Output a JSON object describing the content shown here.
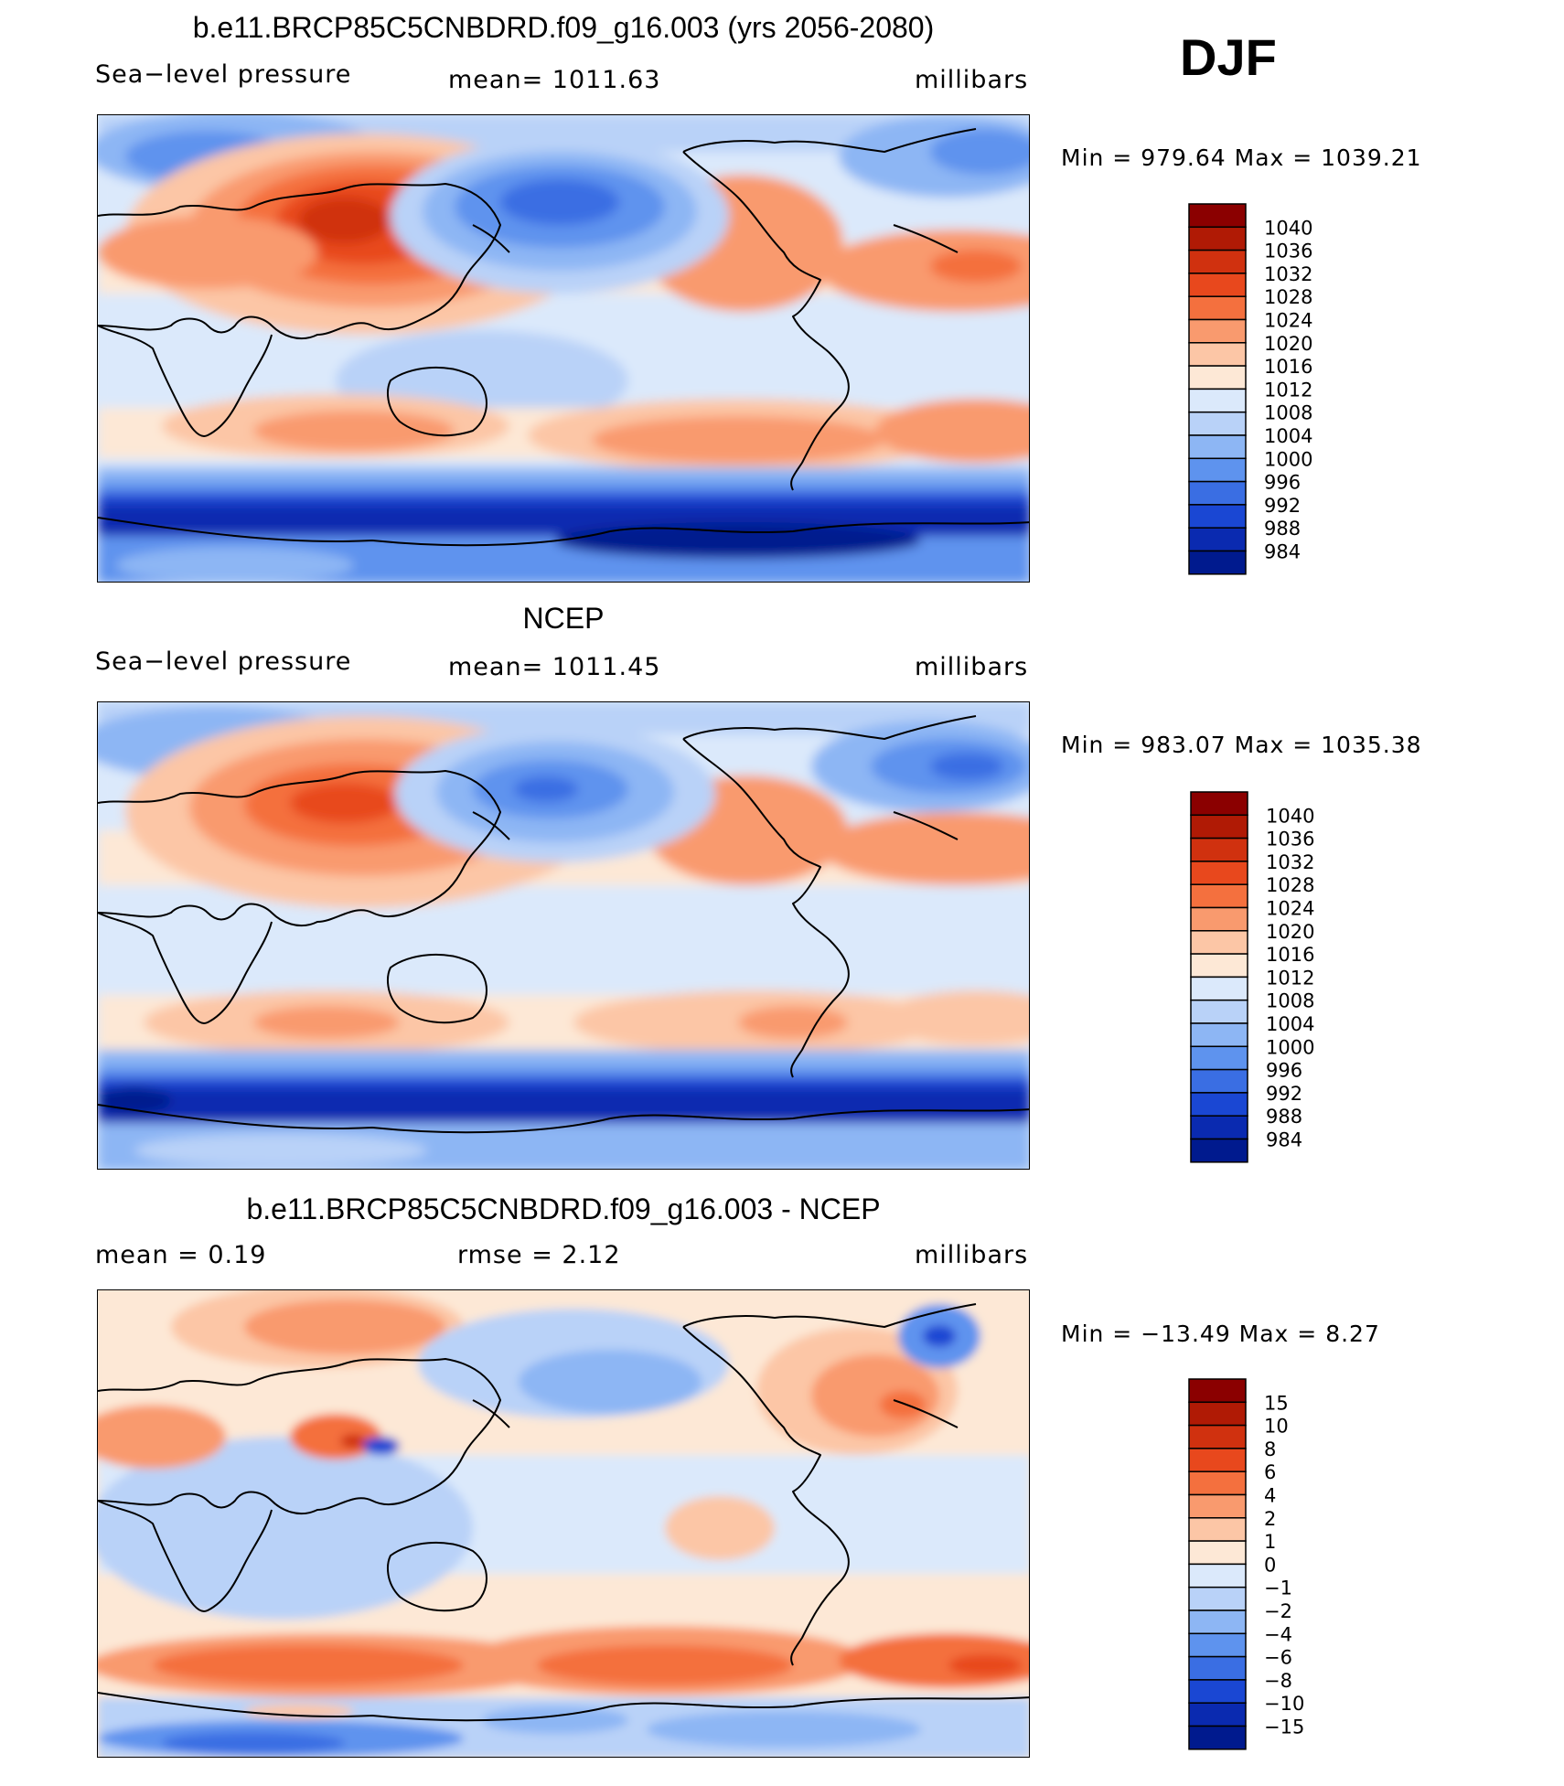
{
  "season": "DJF",
  "chart_data": [
    {
      "type": "heatmap",
      "title": "b.e11.BRCP85C5CNBDRD.f09_g16.003 (yrs 2056-2080)",
      "left_label": "Sea−level pressure",
      "center_label": "mean=  1011.63",
      "right_label": "millibars",
      "mean": 1011.63,
      "min_max_text": "Min  =  979.64  Max  =  1039.21",
      "min": 979.64,
      "max": 1039.21,
      "colorbar": {
        "levels": [
          "1040",
          "1036",
          "1032",
          "1028",
          "1024",
          "1020",
          "1016",
          "1012",
          "1008",
          "1004",
          "1000",
          "996",
          "992",
          "988",
          "984"
        ],
        "colors": [
          "#8b0000",
          "#b01a05",
          "#d0310f",
          "#e8481d",
          "#f4703e",
          "#f99a6e",
          "#fcc6a6",
          "#fde8d6",
          "#dbe9fb",
          "#b9d2f8",
          "#8db6f4",
          "#5e93ee",
          "#3a6ee3",
          "#1a47d3",
          "#0a2ab0",
          "#001a8e"
        ]
      }
    },
    {
      "type": "heatmap",
      "title": "NCEP",
      "left_label": "Sea−level pressure",
      "center_label": "mean=  1011.45",
      "right_label": "millibars",
      "mean": 1011.45,
      "min_max_text": "Min  =  983.07  Max  =  1035.38",
      "min": 983.07,
      "max": 1035.38,
      "colorbar": {
        "levels": [
          "1040",
          "1036",
          "1032",
          "1028",
          "1024",
          "1020",
          "1016",
          "1012",
          "1008",
          "1004",
          "1000",
          "996",
          "992",
          "988",
          "984"
        ],
        "colors": [
          "#8b0000",
          "#b01a05",
          "#d0310f",
          "#e8481d",
          "#f4703e",
          "#f99a6e",
          "#fcc6a6",
          "#fde8d6",
          "#dbe9fb",
          "#b9d2f8",
          "#8db6f4",
          "#5e93ee",
          "#3a6ee3",
          "#1a47d3",
          "#0a2ab0",
          "#001a8e"
        ]
      }
    },
    {
      "type": "heatmap",
      "title": "b.e11.BRCP85C5CNBDRD.f09_g16.003 - NCEP",
      "left_label": "mean  =     0.19",
      "center_label": "rmse  =     2.12",
      "right_label": "millibars",
      "mean": 0.19,
      "rmse": 2.12,
      "min_max_text": "Min  =  −13.49  Max  =     8.27",
      "min": -13.49,
      "max": 8.27,
      "colorbar": {
        "levels": [
          "15",
          "10",
          "8",
          "6",
          "4",
          "2",
          "1",
          "0",
          "−1",
          "−2",
          "−4",
          "−6",
          "−8",
          "−10",
          "−15"
        ],
        "colors": [
          "#8b0000",
          "#b01a05",
          "#d0310f",
          "#e8481d",
          "#f4703e",
          "#f99a6e",
          "#fcc6a6",
          "#fde8d6",
          "#dbe9fb",
          "#b9d2f8",
          "#8db6f4",
          "#5e93ee",
          "#3a6ee3",
          "#1a47d3",
          "#0a2ab0",
          "#001a8e"
        ]
      }
    }
  ]
}
